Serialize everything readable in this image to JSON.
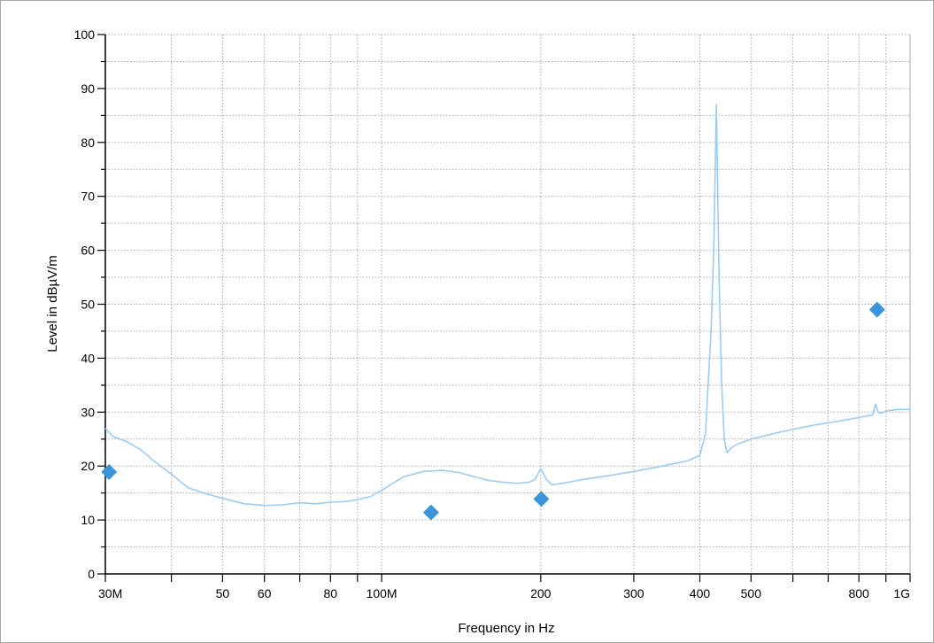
{
  "chart_data": {
    "type": "line",
    "title": "",
    "xlabel": "Frequency in Hz",
    "ylabel": "Level in dBµV/m",
    "x_scale": "log",
    "xlim": [
      30000000,
      1000000000
    ],
    "ylim": [
      0,
      100
    ],
    "grid": true,
    "x_ticks": [
      {
        "value": 30000000,
        "label": "30M"
      },
      {
        "value": 50000000,
        "label": "50"
      },
      {
        "value": 60000000,
        "label": "60"
      },
      {
        "value": 80000000,
        "label": "80"
      },
      {
        "value": 100000000,
        "label": "100M"
      },
      {
        "value": 200000000,
        "label": "200"
      },
      {
        "value": 300000000,
        "label": "300"
      },
      {
        "value": 400000000,
        "label": "400"
      },
      {
        "value": 500000000,
        "label": "500"
      },
      {
        "value": 800000000,
        "label": "800"
      },
      {
        "value": 1000000000,
        "label": "1G"
      }
    ],
    "y_ticks": [
      0,
      10,
      20,
      30,
      40,
      50,
      60,
      70,
      80,
      90,
      100
    ],
    "series": [
      {
        "color": "#99ccf5",
        "x": [
          30000000,
          31000000,
          33000000,
          35000000,
          37000000,
          40000000,
          43000000,
          46000000,
          50000000,
          55000000,
          60000000,
          65000000,
          70000000,
          75000000,
          80000000,
          85000000,
          90000000,
          95000000,
          100000000,
          105000000,
          110000000,
          120000000,
          130000000,
          140000000,
          150000000,
          160000000,
          170000000,
          180000000,
          190000000,
          195000000,
          200000000,
          205000000,
          210000000,
          220000000,
          240000000,
          260000000,
          280000000,
          300000000,
          320000000,
          340000000,
          360000000,
          380000000,
          400000000,
          410000000,
          420000000,
          425000000,
          430000000,
          435000000,
          440000000,
          445000000,
          450000000,
          455000000,
          460000000,
          470000000,
          500000000,
          550000000,
          600000000,
          650000000,
          700000000,
          750000000,
          800000000,
          850000000,
          860000000,
          870000000,
          880000000,
          900000000,
          950000000,
          1000000000
        ],
        "y": [
          27,
          25.5,
          24.5,
          23,
          21,
          18.5,
          16,
          15,
          14,
          13,
          12.7,
          12.8,
          13.2,
          13,
          13.3,
          13.4,
          13.8,
          14.3,
          15.5,
          16.8,
          18,
          19,
          19.2,
          18.8,
          18,
          17.3,
          17,
          16.8,
          17,
          17.5,
          19.5,
          17.5,
          16.5,
          16.8,
          17.5,
          18,
          18.5,
          19,
          19.5,
          20,
          20.5,
          21,
          22,
          26,
          45,
          60,
          87,
          55,
          35,
          25,
          22.5,
          23,
          23.5,
          24,
          25,
          26,
          26.8,
          27.5,
          28,
          28.5,
          29,
          29.5,
          31.5,
          30,
          29.8,
          30.2,
          30.5,
          30.5
        ]
      }
    ],
    "markers": {
      "color": "#3a96d9",
      "points": [
        {
          "x": 30500000,
          "y": 18.9
        },
        {
          "x": 124000000,
          "y": 11.4
        },
        {
          "x": 200500000,
          "y": 13.9
        },
        {
          "x": 866000000,
          "y": 49.0
        }
      ]
    }
  }
}
